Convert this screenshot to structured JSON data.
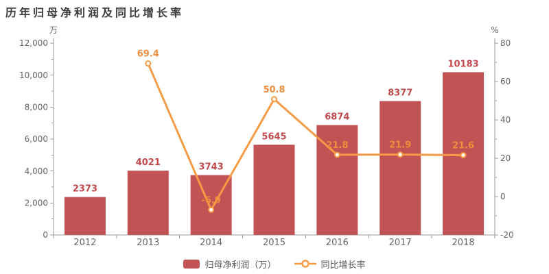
{
  "title": "历年归母净利润及同比增长率",
  "chart_data": {
    "type": "bar+line",
    "categories": [
      "2012",
      "2013",
      "2014",
      "2015",
      "2016",
      "2017",
      "2018"
    ],
    "series": [
      {
        "name": "归母净利润（万）",
        "type": "bar",
        "axis": "left",
        "values": [
          2373,
          4021,
          3743,
          5645,
          6874,
          8377,
          10183
        ],
        "labels": [
          "2373",
          "4021",
          "3743",
          "5645",
          "6874",
          "8377",
          "10183"
        ]
      },
      {
        "name": "同比增长率",
        "type": "line",
        "axis": "right",
        "values": [
          null,
          69.4,
          -6.9,
          50.8,
          21.8,
          21.9,
          21.6
        ],
        "labels": [
          "",
          "69.4",
          "-6.9",
          "50.8",
          "21.8",
          "21.9",
          "21.6"
        ]
      }
    ],
    "left_axis": {
      "unit": "万",
      "min": 0,
      "max": 12000,
      "major_step": 2000,
      "minor_step": 1000,
      "tick_labels": [
        "0",
        "2,000",
        "4,000",
        "6,000",
        "8,000",
        "10,000",
        "12,000"
      ]
    },
    "right_axis": {
      "unit": "%",
      "min": -20,
      "max": 80,
      "major_step": 20,
      "minor_step": 10,
      "tick_labels": [
        "-20",
        "0",
        "20",
        "40",
        "60",
        "80"
      ]
    },
    "legend": [
      {
        "label": "归母净利润（万）",
        "marker": "bar-swatch"
      },
      {
        "label": "同比增长率",
        "marker": "line-circle"
      }
    ],
    "grid": "off",
    "legend_position": "bottom-center"
  },
  "colors": {
    "bar": "#c25355",
    "bar_label": "#c1494b",
    "line": "#f59b45",
    "line_label": "#f08e3e",
    "marker_fill": "#ffffff",
    "axis": "#999999",
    "tick_label": "#666666",
    "category_label": "#666666",
    "title": "#3d3d3d",
    "legend_text": "#595959",
    "background": "#ffffff"
  }
}
